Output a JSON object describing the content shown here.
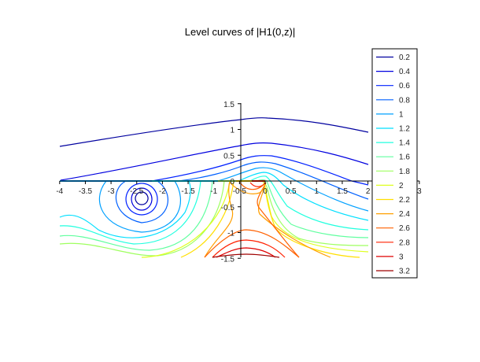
{
  "chart_data": {
    "type": "contour",
    "title": "Level curves of |H1(0,z)|",
    "xlim": [
      -4,
      3
    ],
    "ylim": [
      -1.5,
      1.5
    ],
    "x_ticks": [
      "-4",
      "-3.5",
      "-3",
      "-2.5",
      "-2",
      "-1.5",
      "-1",
      "-0.5",
      "0",
      "0.5",
      "1",
      "1.5",
      "2",
      "3"
    ],
    "x_tick_values": [
      -4,
      -3.5,
      -3,
      -2.5,
      -2,
      -1.5,
      -1,
      -0.5,
      0,
      0.5,
      1,
      1.5,
      2,
      3
    ],
    "y_ticks": [
      "1.5",
      "1",
      "0.5",
      "0",
      "-0.5",
      "-1",
      "-1.5"
    ],
    "y_tick_values": [
      1.5,
      1,
      0.5,
      0,
      -0.5,
      -1,
      -1.5
    ],
    "grid": false,
    "legend_placement": "right",
    "levels": [
      "0.2",
      "0.4",
      "0.6",
      "0.8",
      "1",
      "1.2",
      "1.4",
      "1.6",
      "1.8",
      "2",
      "2.2",
      "2.4",
      "2.6",
      "2.8",
      "3",
      "3.2"
    ],
    "colors": [
      "#00009f",
      "#0000df",
      "#0020ff",
      "#0060ff",
      "#00a0ff",
      "#00dfff",
      "#20ffdf",
      "#60ff9f",
      "#9fff60",
      "#dfff20",
      "#ffdf00",
      "#ff9f00",
      "#ff6000",
      "#ff2000",
      "#df0000",
      "#9f0000"
    ],
    "features": {
      "zero_near": [
        -2.4,
        -0.35
      ],
      "singularity_at": [
        0,
        0
      ]
    }
  }
}
